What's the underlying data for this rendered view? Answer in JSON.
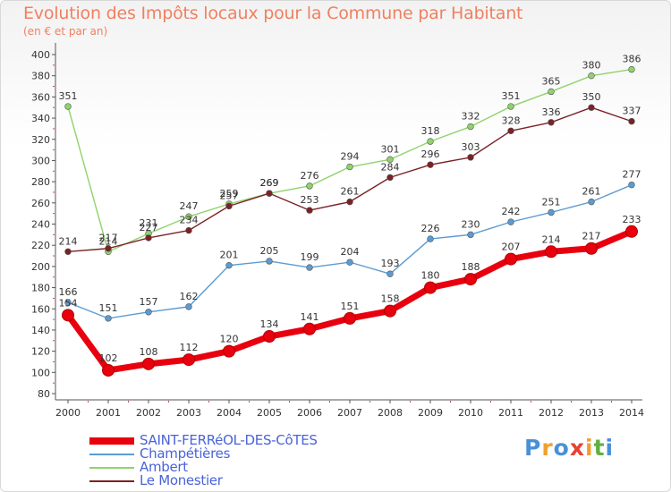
{
  "header": {
    "title": "Evolution des Impôts locaux pour la Commune par Habitant",
    "subtitle": "(en € et par an)"
  },
  "logo": {
    "text": "Proxiti",
    "colors": [
      "#4a90d9",
      "#f0a030",
      "#4a90d9",
      "#e84030",
      "#f0a030",
      "#60b040",
      "#4a90d9"
    ]
  },
  "chart_data": {
    "type": "line",
    "title": "Evolution des Impôts locaux pour la Commune par Habitant",
    "subtitle": "(en € et par an)",
    "x": [
      "2000",
      "2001",
      "2002",
      "2003",
      "2004",
      "2005",
      "2006",
      "2007",
      "2008",
      "2009",
      "2010",
      "2011",
      "2012",
      "2013",
      "2014"
    ],
    "ylim": [
      80,
      400
    ],
    "yticks": [
      80,
      100,
      120,
      140,
      160,
      180,
      200,
      220,
      240,
      260,
      280,
      300,
      320,
      340,
      360,
      380,
      400
    ],
    "grid": false,
    "legend_position": "bottom-left",
    "series": [
      {
        "name": "SAINT-FERRéOL-DES-CôTES",
        "color": "#e8000e",
        "emphasis": true,
        "values": [
          154,
          102,
          108,
          112,
          120,
          134,
          141,
          151,
          158,
          180,
          188,
          207,
          214,
          217,
          233
        ]
      },
      {
        "name": "Champétières",
        "color": "#5c9bd1",
        "emphasis": false,
        "values": [
          166,
          151,
          157,
          162,
          201,
          205,
          199,
          204,
          193,
          226,
          230,
          242,
          251,
          261,
          277
        ]
      },
      {
        "name": "Ambert",
        "color": "#8fd36b",
        "emphasis": false,
        "values": [
          351,
          214,
          231,
          247,
          259,
          269,
          276,
          294,
          301,
          318,
          332,
          351,
          365,
          380,
          386
        ]
      },
      {
        "name": "Le Monestier",
        "color": "#7b2226",
        "emphasis": false,
        "values": [
          214,
          217,
          227,
          234,
          257,
          269,
          253,
          261,
          284,
          296,
          303,
          328,
          336,
          350,
          337
        ]
      }
    ]
  }
}
